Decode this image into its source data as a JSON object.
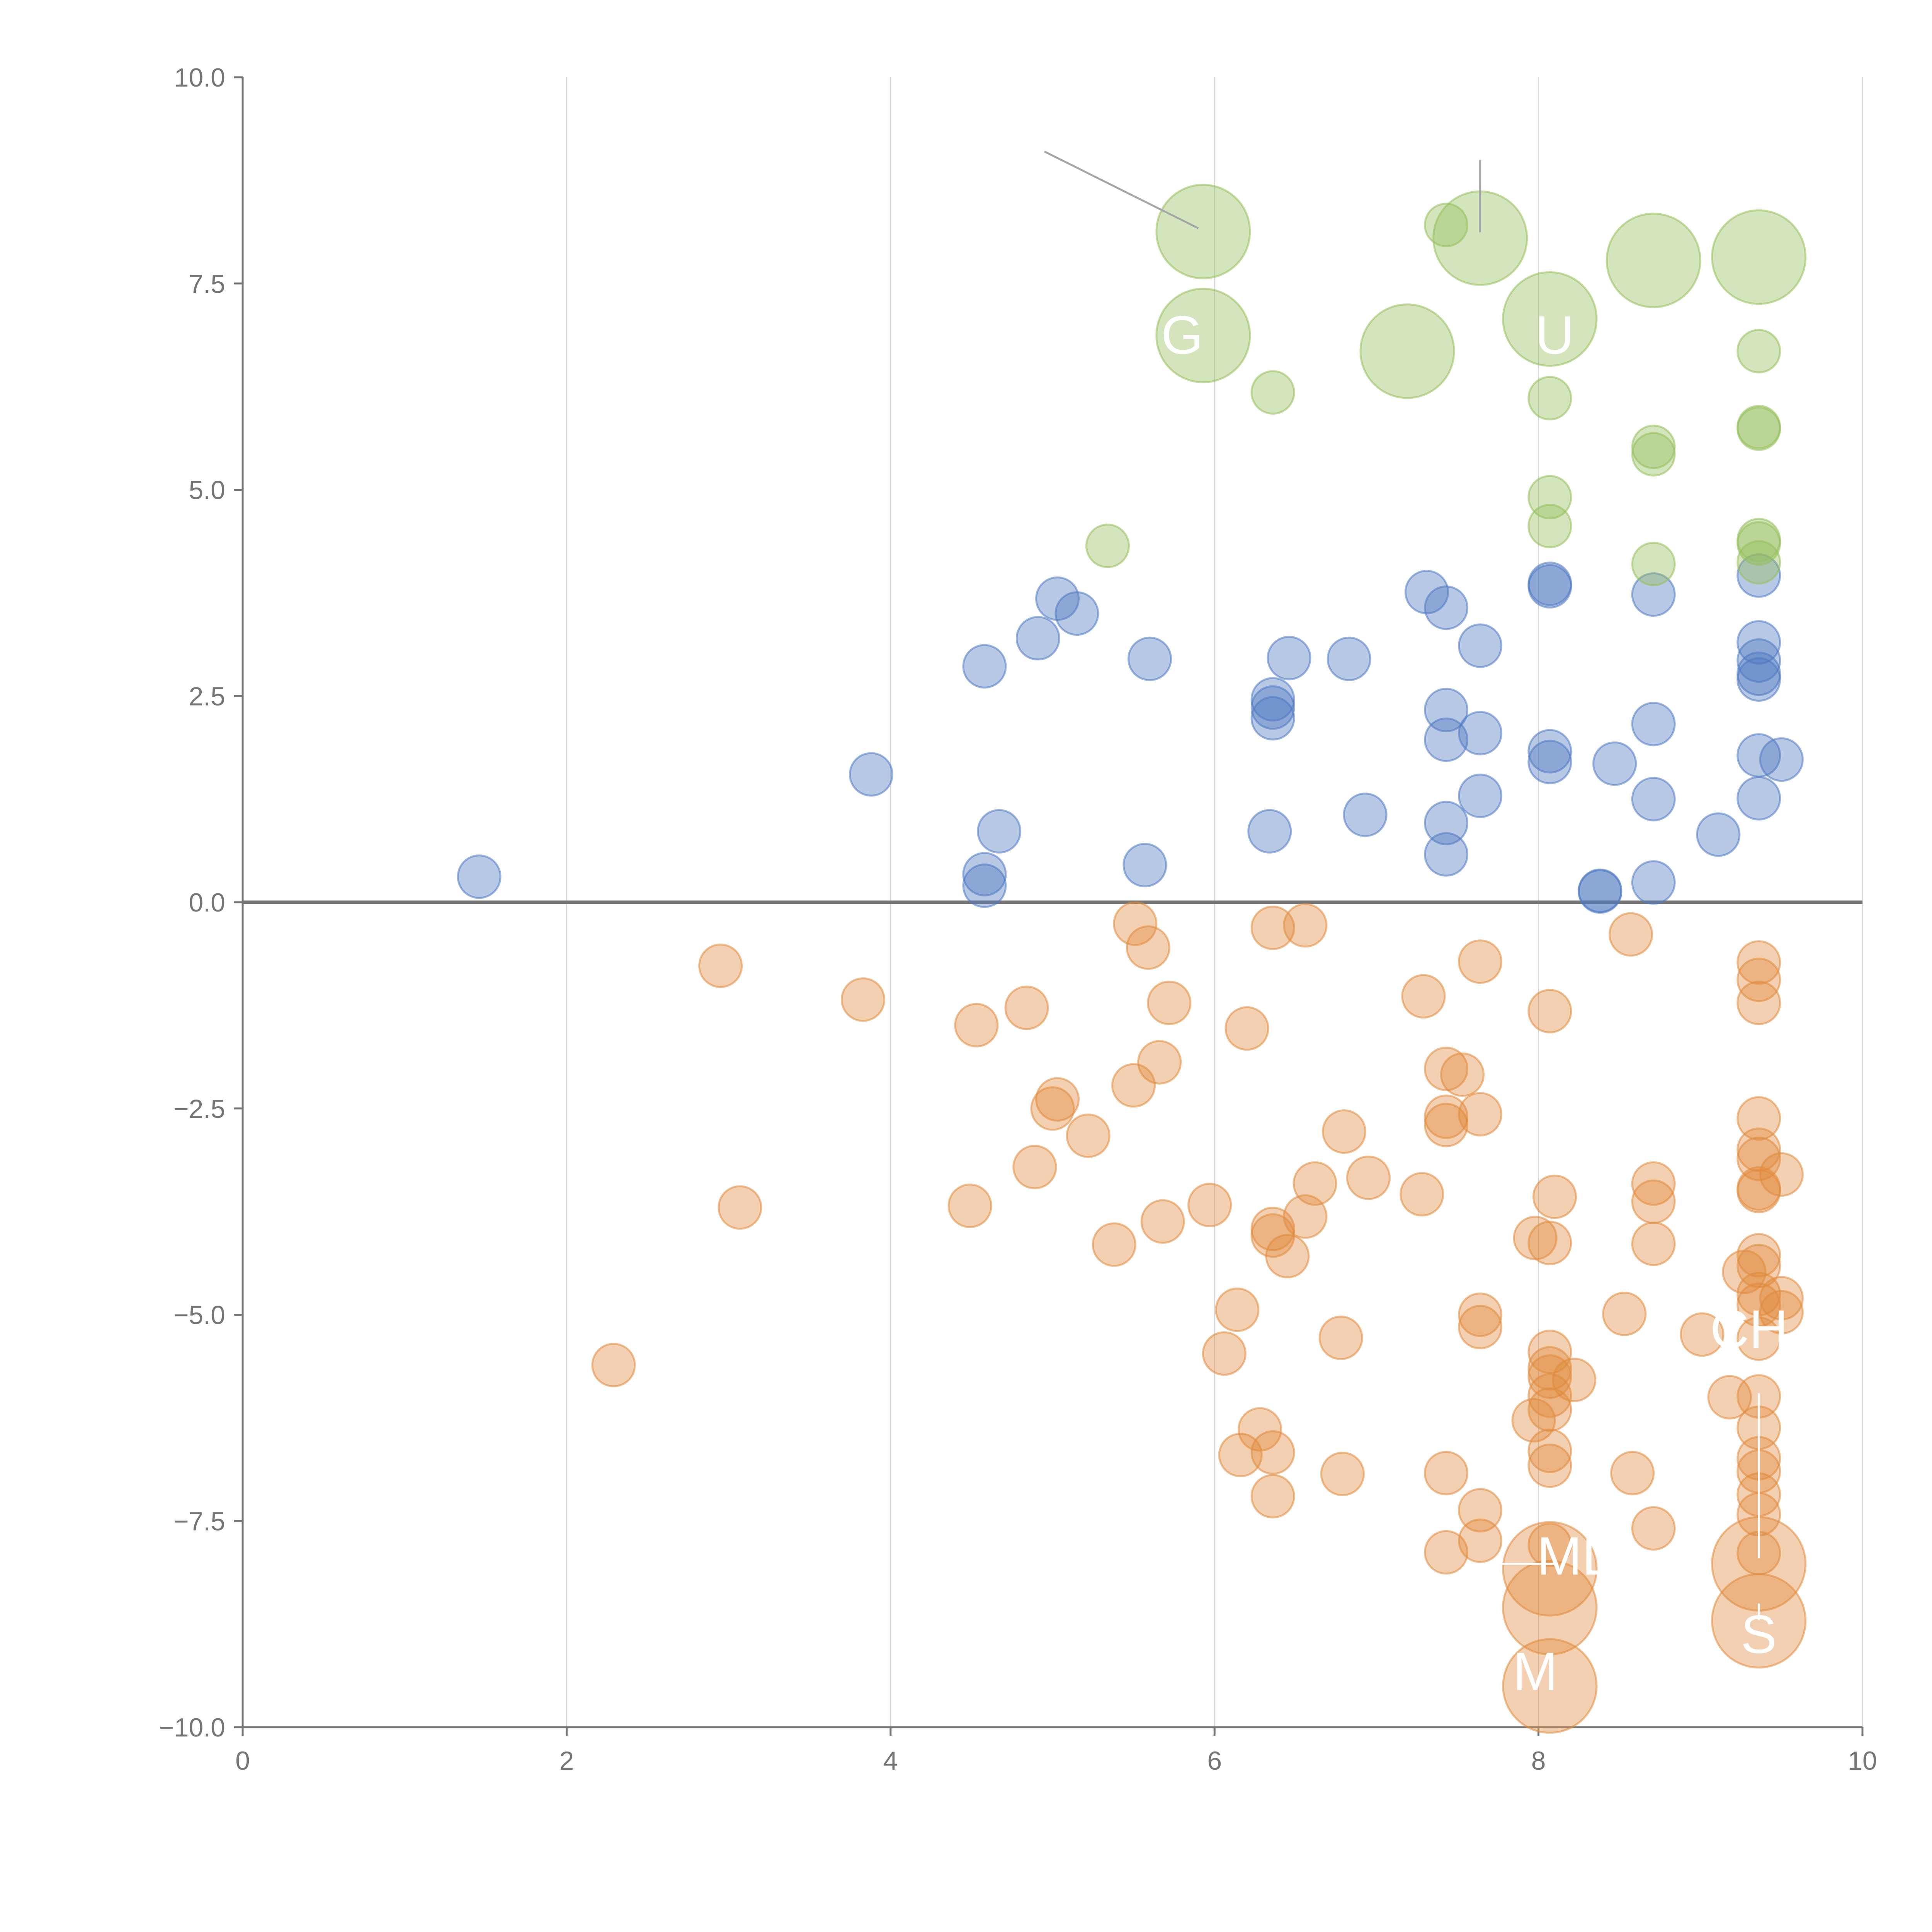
{
  "chart_data": {
    "type": "scatter",
    "title": "",
    "xlabel": "",
    "ylabel": "",
    "xlim": [
      0,
      10
    ],
    "ylim": [
      -10,
      10
    ],
    "x_ticks": [
      0,
      2,
      4,
      6,
      8,
      10
    ],
    "x_tick_labels": [
      "0",
      "2",
      "4",
      "6",
      "8",
      "10"
    ],
    "y_ticks": [
      10,
      7.5,
      5,
      2.5,
      0,
      -2.5,
      -5,
      -7.5,
      -10
    ],
    "y_tick_labels": [
      "10.0",
      "7.5",
      "5.0",
      "2.5",
      "0.0",
      "−2.5",
      "−5.0",
      "−7.5",
      "−10.0"
    ],
    "grid": "vertical",
    "zero_line": 0,
    "colors": {
      "blue": "#4e79c1",
      "orange": "#e08a3c",
      "green": "#94bf5a",
      "axis": "#757575",
      "grid": "#d9d9d9",
      "annotation_line": "#a6a6a6",
      "annotation_text": "#ffffff"
    },
    "series": [
      {
        "name": "blue",
        "color": "#4e79c1",
        "points": [
          {
            "x": 1.46,
            "y": 0.31,
            "s": 1
          },
          {
            "x": 3.88,
            "y": 1.55,
            "s": 1
          },
          {
            "x": 4.58,
            "y": 2.86,
            "s": 1
          },
          {
            "x": 4.58,
            "y": 0.34,
            "s": 1
          },
          {
            "x": 4.58,
            "y": 0.2,
            "s": 1
          },
          {
            "x": 4.67,
            "y": 0.86,
            "s": 1
          },
          {
            "x": 4.91,
            "y": 3.2,
            "s": 1
          },
          {
            "x": 5.03,
            "y": 3.68,
            "s": 1
          },
          {
            "x": 5.15,
            "y": 3.5,
            "s": 1
          },
          {
            "x": 5.57,
            "y": 0.45,
            "s": 1
          },
          {
            "x": 5.6,
            "y": 2.95,
            "s": 1
          },
          {
            "x": 6.34,
            "y": 0.86,
            "s": 1
          },
          {
            "x": 6.36,
            "y": 2.46,
            "s": 1
          },
          {
            "x": 6.36,
            "y": 2.36,
            "s": 1
          },
          {
            "x": 6.36,
            "y": 2.23,
            "s": 1
          },
          {
            "x": 6.46,
            "y": 2.96,
            "s": 1
          },
          {
            "x": 6.83,
            "y": 2.95,
            "s": 1
          },
          {
            "x": 6.93,
            "y": 1.06,
            "s": 1
          },
          {
            "x": 7.31,
            "y": 3.76,
            "s": 1
          },
          {
            "x": 7.43,
            "y": 3.57,
            "s": 1
          },
          {
            "x": 7.43,
            "y": 2.33,
            "s": 1
          },
          {
            "x": 7.43,
            "y": 1.97,
            "s": 1
          },
          {
            "x": 7.43,
            "y": 0.96,
            "s": 1
          },
          {
            "x": 7.43,
            "y": 0.58,
            "s": 1
          },
          {
            "x": 7.64,
            "y": 3.11,
            "s": 1
          },
          {
            "x": 7.64,
            "y": 2.05,
            "s": 1
          },
          {
            "x": 7.64,
            "y": 1.29,
            "s": 1
          },
          {
            "x": 8.07,
            "y": 3.86,
            "s": 1
          },
          {
            "x": 8.07,
            "y": 3.83,
            "s": 1
          },
          {
            "x": 8.07,
            "y": 1.83,
            "s": 1
          },
          {
            "x": 8.07,
            "y": 1.7,
            "s": 1
          },
          {
            "x": 8.38,
            "y": 0.14,
            "s": 1
          },
          {
            "x": 8.38,
            "y": 0.13,
            "s": 1
          },
          {
            "x": 8.47,
            "y": 1.68,
            "s": 1
          },
          {
            "x": 8.71,
            "y": 3.73,
            "s": 1
          },
          {
            "x": 8.71,
            "y": 2.16,
            "s": 1
          },
          {
            "x": 8.71,
            "y": 1.25,
            "s": 1
          },
          {
            "x": 8.71,
            "y": 0.24,
            "s": 1
          },
          {
            "x": 9.11,
            "y": 0.82,
            "s": 1
          },
          {
            "x": 9.36,
            "y": 3.96,
            "s": 1
          },
          {
            "x": 9.36,
            "y": 3.15,
            "s": 1
          },
          {
            "x": 9.36,
            "y": 2.93,
            "s": 1
          },
          {
            "x": 9.36,
            "y": 2.77,
            "s": 1
          },
          {
            "x": 9.36,
            "y": 2.7,
            "s": 1
          },
          {
            "x": 9.36,
            "y": 1.78,
            "s": 1
          },
          {
            "x": 9.36,
            "y": 1.26,
            "s": 1
          },
          {
            "x": 9.5,
            "y": 1.73,
            "s": 1
          }
        ]
      },
      {
        "name": "orange",
        "color": "#e08a3c",
        "points": [
          {
            "x": 2.29,
            "y": -5.61,
            "s": 1
          },
          {
            "x": 2.95,
            "y": -0.77,
            "s": 1
          },
          {
            "x": 3.07,
            "y": -3.7,
            "s": 1
          },
          {
            "x": 3.83,
            "y": -1.18,
            "s": 1
          },
          {
            "x": 4.49,
            "y": -3.68,
            "s": 1
          },
          {
            "x": 4.53,
            "y": -1.49,
            "s": 1
          },
          {
            "x": 4.84,
            "y": -1.28,
            "s": 1
          },
          {
            "x": 4.89,
            "y": -3.21,
            "s": 1
          },
          {
            "x": 5.0,
            "y": -2.5,
            "s": 1
          },
          {
            "x": 5.03,
            "y": -2.39,
            "s": 1
          },
          {
            "x": 5.22,
            "y": -2.83,
            "s": 1
          },
          {
            "x": 5.38,
            "y": -4.15,
            "s": 1
          },
          {
            "x": 5.5,
            "y": -2.22,
            "s": 1
          },
          {
            "x": 5.51,
            "y": -0.26,
            "s": 1
          },
          {
            "x": 5.59,
            "y": -0.55,
            "s": 1
          },
          {
            "x": 5.66,
            "y": -1.94,
            "s": 1
          },
          {
            "x": 5.68,
            "y": -3.87,
            "s": 1
          },
          {
            "x": 5.72,
            "y": -1.22,
            "s": 1
          },
          {
            "x": 5.97,
            "y": -3.67,
            "s": 1
          },
          {
            "x": 6.06,
            "y": -5.47,
            "s": 1
          },
          {
            "x": 6.14,
            "y": -4.94,
            "s": 1
          },
          {
            "x": 6.16,
            "y": -6.7,
            "s": 1
          },
          {
            "x": 6.2,
            "y": -1.53,
            "s": 1
          },
          {
            "x": 6.28,
            "y": -6.39,
            "s": 1
          },
          {
            "x": 6.36,
            "y": -0.31,
            "s": 1
          },
          {
            "x": 6.36,
            "y": -3.96,
            "s": 1
          },
          {
            "x": 6.36,
            "y": -4.04,
            "s": 1
          },
          {
            "x": 6.36,
            "y": -6.67,
            "s": 1
          },
          {
            "x": 6.36,
            "y": -7.2,
            "s": 1
          },
          {
            "x": 6.45,
            "y": -4.29,
            "s": 1
          },
          {
            "x": 6.56,
            "y": -0.28,
            "s": 1
          },
          {
            "x": 6.56,
            "y": -3.81,
            "s": 1
          },
          {
            "x": 6.62,
            "y": -3.41,
            "s": 1
          },
          {
            "x": 6.78,
            "y": -5.28,
            "s": 1
          },
          {
            "x": 6.79,
            "y": -6.93,
            "s": 1
          },
          {
            "x": 6.8,
            "y": -2.78,
            "s": 1
          },
          {
            "x": 6.95,
            "y": -3.34,
            "s": 1
          },
          {
            "x": 7.28,
            "y": -3.54,
            "s": 1
          },
          {
            "x": 7.29,
            "y": -1.14,
            "s": 1
          },
          {
            "x": 7.43,
            "y": -2.02,
            "s": 1
          },
          {
            "x": 7.43,
            "y": -2.6,
            "s": 1
          },
          {
            "x": 7.43,
            "y": -2.7,
            "s": 1
          },
          {
            "x": 7.43,
            "y": -6.92,
            "s": 1
          },
          {
            "x": 7.43,
            "y": -7.88,
            "s": 1
          },
          {
            "x": 7.53,
            "y": -2.09,
            "s": 1
          },
          {
            "x": 7.64,
            "y": -0.72,
            "s": 1
          },
          {
            "x": 7.64,
            "y": -2.57,
            "s": 1
          },
          {
            "x": 7.64,
            "y": -5.0,
            "s": 1
          },
          {
            "x": 7.64,
            "y": -5.15,
            "s": 1
          },
          {
            "x": 7.64,
            "y": -7.37,
            "s": 1
          },
          {
            "x": 7.64,
            "y": -7.74,
            "s": 1
          },
          {
            "x": 7.97,
            "y": -6.28,
            "s": 1
          },
          {
            "x": 7.98,
            "y": -4.07,
            "s": 1
          },
          {
            "x": 8.07,
            "y": -1.32,
            "s": 1
          },
          {
            "x": 8.07,
            "y": -4.13,
            "s": 1
          },
          {
            "x": 8.07,
            "y": -5.45,
            "s": 1
          },
          {
            "x": 8.07,
            "y": -5.65,
            "s": 1
          },
          {
            "x": 8.07,
            "y": -5.75,
            "s": 1
          },
          {
            "x": 8.07,
            "y": -5.98,
            "s": 1
          },
          {
            "x": 8.07,
            "y": -6.15,
            "s": 1
          },
          {
            "x": 8.07,
            "y": -6.65,
            "s": 1
          },
          {
            "x": 8.07,
            "y": -6.83,
            "s": 1
          },
          {
            "x": 8.07,
            "y": -7.79,
            "s": 1
          },
          {
            "x": 8.1,
            "y": -3.57,
            "s": 1
          },
          {
            "x": 8.22,
            "y": -5.79,
            "s": 1
          },
          {
            "x": 8.53,
            "y": -4.99,
            "s": 1
          },
          {
            "x": 8.57,
            "y": -0.39,
            "s": 1
          },
          {
            "x": 8.58,
            "y": -6.92,
            "s": 1
          },
          {
            "x": 8.71,
            "y": -3.41,
            "s": 1
          },
          {
            "x": 8.71,
            "y": -3.63,
            "s": 1
          },
          {
            "x": 8.71,
            "y": -4.14,
            "s": 1
          },
          {
            "x": 8.71,
            "y": -7.59,
            "s": 1
          },
          {
            "x": 9.01,
            "y": -5.24,
            "s": 1
          },
          {
            "x": 9.18,
            "y": -6.0,
            "s": 1
          },
          {
            "x": 9.27,
            "y": -4.48,
            "s": 1
          },
          {
            "x": 9.36,
            "y": -0.73,
            "s": 1
          },
          {
            "x": 9.36,
            "y": -0.94,
            "s": 1
          },
          {
            "x": 9.36,
            "y": -1.22,
            "s": 1
          },
          {
            "x": 9.36,
            "y": -2.62,
            "s": 1
          },
          {
            "x": 9.36,
            "y": -3.0,
            "s": 1
          },
          {
            "x": 9.36,
            "y": -3.11,
            "s": 1
          },
          {
            "x": 9.36,
            "y": -3.47,
            "s": 1
          },
          {
            "x": 9.36,
            "y": -3.5,
            "s": 1
          },
          {
            "x": 9.36,
            "y": -4.28,
            "s": 1
          },
          {
            "x": 9.36,
            "y": -4.41,
            "s": 1
          },
          {
            "x": 9.36,
            "y": -4.75,
            "s": 1
          },
          {
            "x": 9.36,
            "y": -4.88,
            "s": 1
          },
          {
            "x": 9.36,
            "y": -5.29,
            "s": 1
          },
          {
            "x": 9.36,
            "y": -5.99,
            "s": 1
          },
          {
            "x": 9.36,
            "y": -6.37,
            "s": 1
          },
          {
            "x": 9.36,
            "y": -6.74,
            "s": 1
          },
          {
            "x": 9.36,
            "y": -6.9,
            "s": 1
          },
          {
            "x": 9.36,
            "y": -7.18,
            "s": 1
          },
          {
            "x": 9.36,
            "y": -7.42,
            "s": 1
          },
          {
            "x": 9.36,
            "y": -7.89,
            "s": 1
          },
          {
            "x": 9.5,
            "y": -3.3,
            "s": 1
          },
          {
            "x": 9.5,
            "y": -4.8,
            "s": 1
          },
          {
            "x": 9.5,
            "y": -4.97,
            "s": 1
          },
          {
            "x": 8.07,
            "y": -8.08,
            "s": 2.2
          },
          {
            "x": 8.07,
            "y": -8.55,
            "s": 2.2
          },
          {
            "x": 8.07,
            "y": -9.5,
            "s": 2.2
          },
          {
            "x": 9.36,
            "y": -8.02,
            "s": 2.2
          },
          {
            "x": 9.36,
            "y": -8.71,
            "s": 2.2
          }
        ]
      },
      {
        "name": "green",
        "color": "#94bf5a",
        "points": [
          {
            "x": 5.34,
            "y": 4.32,
            "s": 1
          },
          {
            "x": 6.36,
            "y": 6.18,
            "s": 1
          },
          {
            "x": 7.43,
            "y": 8.21,
            "s": 1
          },
          {
            "x": 8.07,
            "y": 6.11,
            "s": 1
          },
          {
            "x": 8.07,
            "y": 4.91,
            "s": 1
          },
          {
            "x": 8.07,
            "y": 4.56,
            "s": 1
          },
          {
            "x": 8.71,
            "y": 5.52,
            "s": 1
          },
          {
            "x": 8.71,
            "y": 5.43,
            "s": 1
          },
          {
            "x": 8.71,
            "y": 4.1,
            "s": 1
          },
          {
            "x": 9.36,
            "y": 6.68,
            "s": 1
          },
          {
            "x": 9.36,
            "y": 5.74,
            "s": 1
          },
          {
            "x": 9.36,
            "y": 5.76,
            "s": 1
          },
          {
            "x": 9.36,
            "y": 4.39,
            "s": 1
          },
          {
            "x": 9.36,
            "y": 4.35,
            "s": 1
          },
          {
            "x": 9.36,
            "y": 4.12,
            "s": 1
          },
          {
            "x": 5.93,
            "y": 8.13,
            "s": 2.2
          },
          {
            "x": 5.93,
            "y": 6.87,
            "s": 2.2
          },
          {
            "x": 7.19,
            "y": 6.68,
            "s": 2.2
          },
          {
            "x": 7.64,
            "y": 8.05,
            "s": 2.2
          },
          {
            "x": 8.07,
            "y": 7.07,
            "s": 2.2
          },
          {
            "x": 8.71,
            "y": 7.78,
            "s": 2.2
          },
          {
            "x": 9.36,
            "y": 7.82,
            "s": 2.2
          }
        ]
      }
    ],
    "annotations": [
      {
        "text": "MD",
        "x": 8.25,
        "y": -8.15,
        "line_from": [
          7.55,
          -8.02
        ],
        "line_to": [
          8.1,
          -8.02
        ]
      },
      {
        "text": "M",
        "x": 7.98,
        "y": -9.55,
        "line_from": [
          8.07,
          -9.4
        ],
        "line_to": [
          8.07,
          -9.4
        ]
      },
      {
        "text": "CH",
        "x": 9.3,
        "y": -5.4,
        "line_from": [
          9.36,
          -5.95
        ],
        "line_to": [
          9.36,
          -7.95
        ]
      },
      {
        "text": "S",
        "x": 9.36,
        "y": -9.1,
        "line_from": [
          9.36,
          -8.5
        ],
        "line_to": [
          9.36,
          -8.7
        ]
      },
      {
        "text": "G",
        "x": 5.8,
        "y": 6.65,
        "line_from": [
          5.93,
          6.87
        ],
        "line_to": [
          5.93,
          6.87
        ]
      },
      {
        "text": "U",
        "x": 8.1,
        "y": 6.65,
        "line_from": [
          8.12,
          7.0
        ],
        "line_to": [
          8.12,
          7.0
        ]
      }
    ],
    "leader_lines": [
      {
        "from": [
          4.95,
          9.1
        ],
        "to": [
          5.9,
          8.17
        ],
        "color": "#a6a6a6"
      },
      {
        "from": [
          7.64,
          9.0
        ],
        "to": [
          7.64,
          8.12
        ],
        "color": "#a6a6a6"
      }
    ]
  }
}
